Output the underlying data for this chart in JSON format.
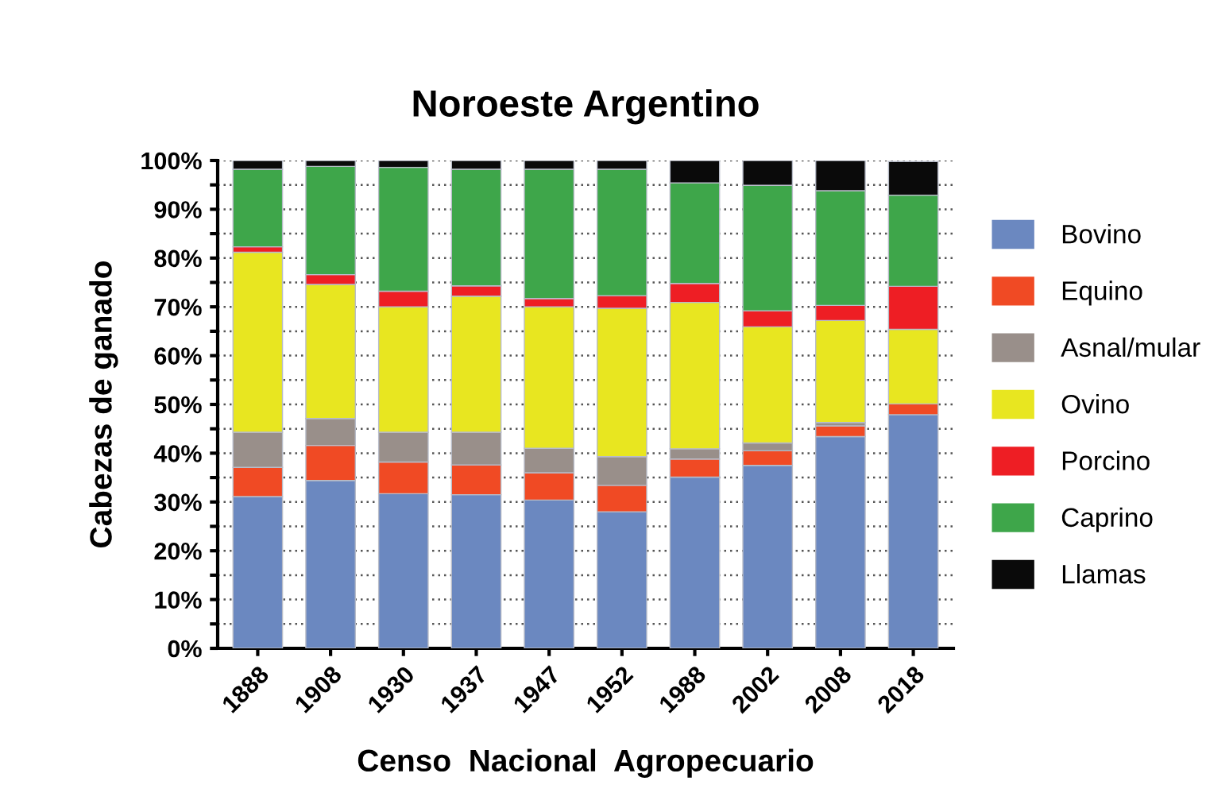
{
  "chart_data": {
    "type": "bar",
    "stacked": true,
    "title": "Noroeste Argentino",
    "xlabel": "Censo  Nacional  Agropecuario",
    "ylabel": "Cabezas de ganado",
    "categories": [
      "1888",
      "1908",
      "1930",
      "1937",
      "1947",
      "1952",
      "1988",
      "2002",
      "2008",
      "2018"
    ],
    "series": [
      {
        "name": "Bovino",
        "color": "#6b88c0",
        "values": [
          31.1,
          34.4,
          31.7,
          31.5,
          30.4,
          28.0,
          35.1,
          37.5,
          43.4,
          47.9
        ]
      },
      {
        "name": "Equino",
        "color": "#f04a24",
        "values": [
          6.0,
          7.2,
          6.5,
          6.1,
          5.6,
          5.4,
          3.7,
          3.0,
          2.2,
          2.2
        ]
      },
      {
        "name": "Asnal/mular",
        "color": "#998f8a",
        "values": [
          7.2,
          5.5,
          6.1,
          6.7,
          5.0,
          5.9,
          2.1,
          1.6,
          0.7,
          null
        ]
      },
      {
        "name": "Ovino",
        "color": "#e8e620",
        "values": [
          36.9,
          27.5,
          25.7,
          27.9,
          29.0,
          30.4,
          30.0,
          23.8,
          20.9,
          15.3
        ]
      },
      {
        "name": "Porcino",
        "color": "#ee1e24",
        "values": [
          1.1,
          2.0,
          3.2,
          2.1,
          1.7,
          2.6,
          3.9,
          3.3,
          3.1,
          8.8
        ]
      },
      {
        "name": "Caprino",
        "color": "#3ea64a",
        "values": [
          15.9,
          22.2,
          25.4,
          23.9,
          26.5,
          25.9,
          20.6,
          25.7,
          23.5,
          18.7
        ]
      },
      {
        "name": "Llamas",
        "color": "#0a0a0a",
        "values": [
          1.8,
          1.2,
          1.4,
          1.8,
          1.8,
          1.8,
          4.6,
          5.1,
          6.2,
          6.9
        ]
      }
    ],
    "ylim": [
      0,
      100
    ],
    "yticks": [
      {
        "value": 0,
        "label": "0%"
      },
      {
        "value": 5,
        "label": null
      },
      {
        "value": 10,
        "label": "10%"
      },
      {
        "value": 15,
        "label": null
      },
      {
        "value": 20,
        "label": "20%"
      },
      {
        "value": 25,
        "label": null
      },
      {
        "value": 30,
        "label": "30%"
      },
      {
        "value": 35,
        "label": null
      },
      {
        "value": 40,
        "label": "40%"
      },
      {
        "value": 45,
        "label": null
      },
      {
        "value": 50,
        "label": "50%"
      },
      {
        "value": 55,
        "label": null
      },
      {
        "value": 60,
        "label": "60%"
      },
      {
        "value": 65,
        "label": null
      },
      {
        "value": 70,
        "label": "70%"
      },
      {
        "value": 75,
        "label": null
      },
      {
        "value": 80,
        "label": "80%"
      },
      {
        "value": 85,
        "label": null
      },
      {
        "value": 90,
        "label": "90%"
      },
      {
        "value": 95,
        "label": null
      },
      {
        "value": 100,
        "label": "100%"
      }
    ],
    "grid": "y",
    "legend": "right"
  }
}
